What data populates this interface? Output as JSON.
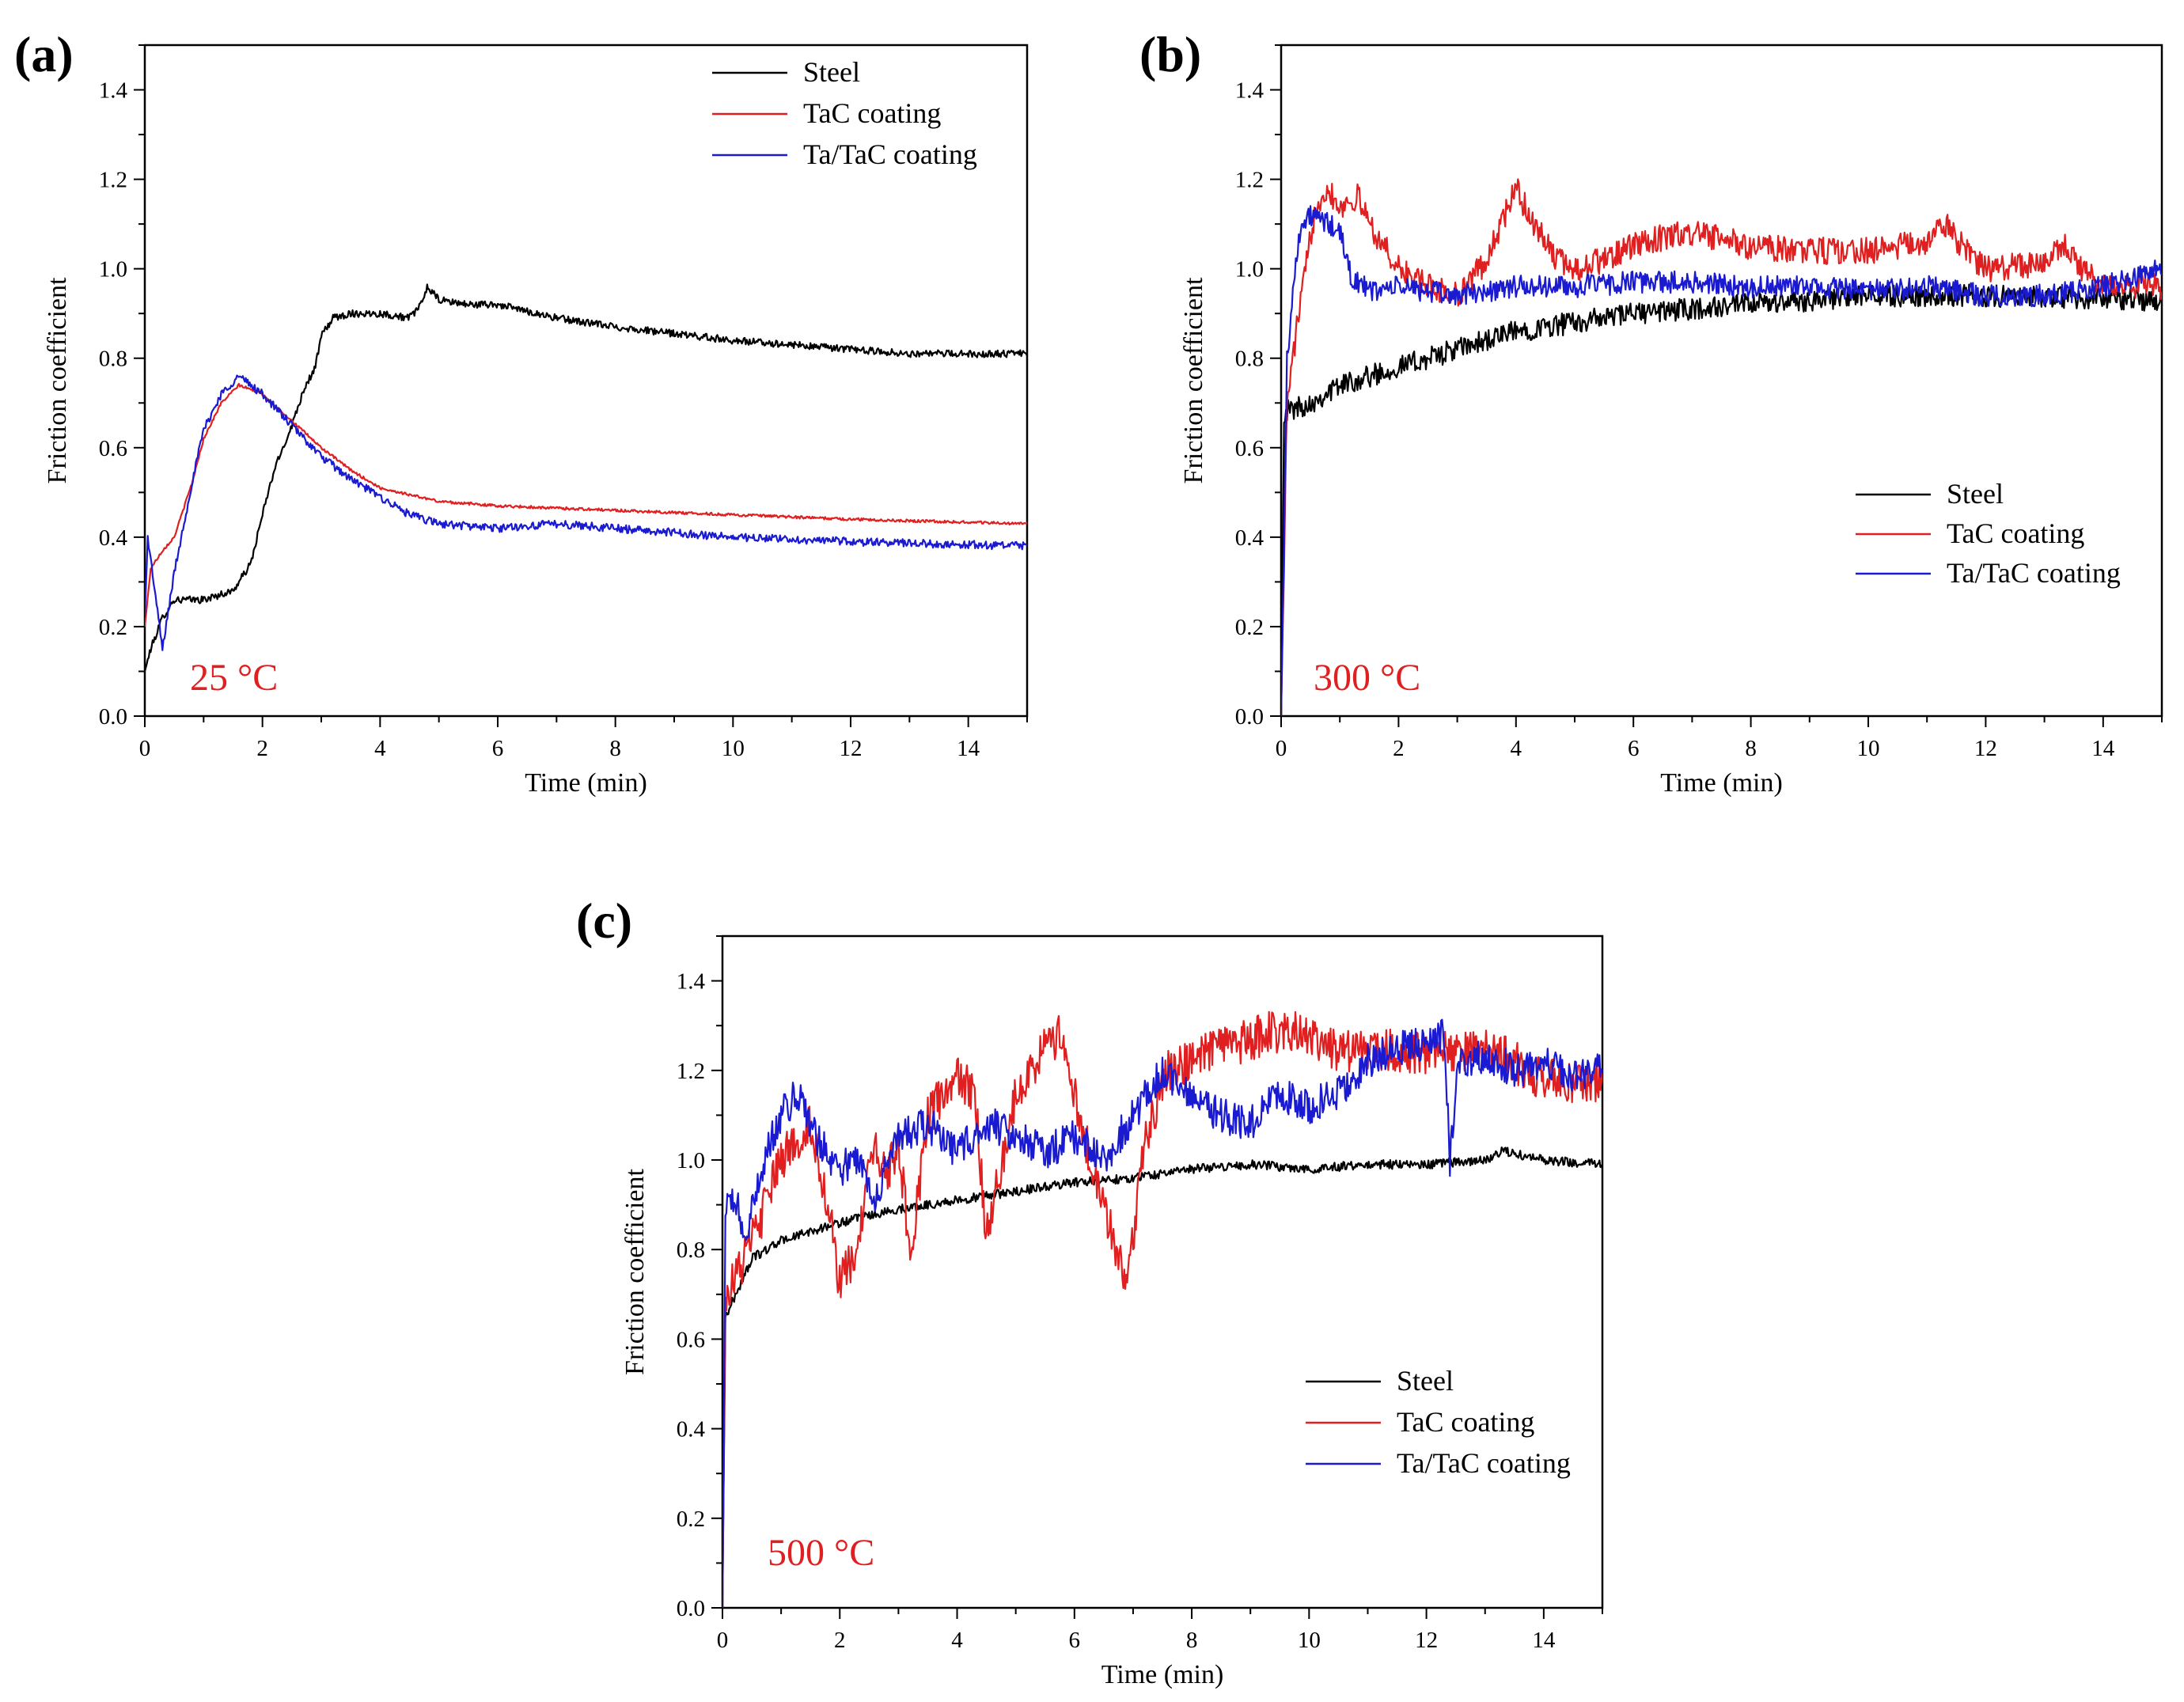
{
  "figure": {
    "panels": [
      "a",
      "b",
      "c"
    ]
  },
  "chart_data": [
    {
      "panel": "(a)",
      "type": "line",
      "annotation": "25 °C",
      "annotation_color": "#e02020",
      "xlabel": "Time (min)",
      "ylabel": "Friction coefficient",
      "xlim": [
        0,
        15
      ],
      "ylim": [
        0,
        1.5
      ],
      "xticks": [
        0,
        2,
        4,
        6,
        8,
        10,
        12,
        14
      ],
      "yticks": [
        0.0,
        0.2,
        0.4,
        0.6,
        0.8,
        1.0,
        1.2,
        1.4
      ],
      "legend_position": "top-right",
      "series": [
        {
          "name": "Steel",
          "color": "#000000",
          "noise": 0.008,
          "points": [
            [
              0,
              0.1
            ],
            [
              0.1,
              0.15
            ],
            [
              0.3,
              0.22
            ],
            [
              0.5,
              0.26
            ],
            [
              1.0,
              0.26
            ],
            [
              1.5,
              0.28
            ],
            [
              1.8,
              0.34
            ],
            [
              2.0,
              0.45
            ],
            [
              2.2,
              0.55
            ],
            [
              2.5,
              0.65
            ],
            [
              2.7,
              0.73
            ],
            [
              2.9,
              0.78
            ],
            [
              3.0,
              0.85
            ],
            [
              3.2,
              0.89
            ],
            [
              3.5,
              0.9
            ],
            [
              4.0,
              0.9
            ],
            [
              4.5,
              0.89
            ],
            [
              4.7,
              0.92
            ],
            [
              4.8,
              0.96
            ],
            [
              5.0,
              0.93
            ],
            [
              5.5,
              0.92
            ],
            [
              6.0,
              0.92
            ],
            [
              7.0,
              0.89
            ],
            [
              8.0,
              0.87
            ],
            [
              10.0,
              0.84
            ],
            [
              12.0,
              0.82
            ],
            [
              13.0,
              0.81
            ],
            [
              15.0,
              0.81
            ]
          ]
        },
        {
          "name": "TaC coating",
          "color": "#e02020",
          "noise": 0.003,
          "points": [
            [
              0,
              0.2
            ],
            [
              0.1,
              0.33
            ],
            [
              0.3,
              0.37
            ],
            [
              0.5,
              0.4
            ],
            [
              0.8,
              0.52
            ],
            [
              1.0,
              0.62
            ],
            [
              1.3,
              0.7
            ],
            [
              1.6,
              0.74
            ],
            [
              2.0,
              0.72
            ],
            [
              2.5,
              0.66
            ],
            [
              3.0,
              0.6
            ],
            [
              3.5,
              0.55
            ],
            [
              4.0,
              0.51
            ],
            [
              5.0,
              0.48
            ],
            [
              6.0,
              0.47
            ],
            [
              8.0,
              0.46
            ],
            [
              10.0,
              0.45
            ],
            [
              12.0,
              0.44
            ],
            [
              15.0,
              0.43
            ]
          ]
        },
        {
          "name": "Ta/TaC coating",
          "color": "#1a1ad0",
          "noise": 0.009,
          "points": [
            [
              0,
              0.22
            ],
            [
              0.05,
              0.4
            ],
            [
              0.15,
              0.3
            ],
            [
              0.3,
              0.15
            ],
            [
              0.5,
              0.32
            ],
            [
              0.8,
              0.52
            ],
            [
              1.0,
              0.64
            ],
            [
              1.3,
              0.72
            ],
            [
              1.6,
              0.76
            ],
            [
              2.0,
              0.72
            ],
            [
              2.5,
              0.65
            ],
            [
              3.0,
              0.58
            ],
            [
              3.5,
              0.53
            ],
            [
              4.0,
              0.49
            ],
            [
              4.5,
              0.45
            ],
            [
              5.0,
              0.43
            ],
            [
              6.0,
              0.42
            ],
            [
              7.0,
              0.43
            ],
            [
              8.0,
              0.42
            ],
            [
              10.0,
              0.4
            ],
            [
              12.0,
              0.39
            ],
            [
              15.0,
              0.38
            ]
          ]
        }
      ]
    },
    {
      "panel": "(b)",
      "type": "line",
      "annotation": "300 °C",
      "annotation_color": "#e02020",
      "xlabel": "Time (min)",
      "ylabel": "Friction coefficient",
      "xlim": [
        0,
        15
      ],
      "ylim": [
        0,
        1.5
      ],
      "xticks": [
        0,
        2,
        4,
        6,
        8,
        10,
        12,
        14
      ],
      "yticks": [
        0.0,
        0.2,
        0.4,
        0.6,
        0.8,
        1.0,
        1.2,
        1.4
      ],
      "legend_position": "bottom-right",
      "series": [
        {
          "name": "Steel",
          "color": "#000000",
          "noise": 0.025,
          "points": [
            [
              0,
              0.0
            ],
            [
              0.05,
              0.68
            ],
            [
              0.5,
              0.7
            ],
            [
              1.0,
              0.74
            ],
            [
              2.0,
              0.78
            ],
            [
              3.0,
              0.82
            ],
            [
              4.0,
              0.86
            ],
            [
              5.0,
              0.88
            ],
            [
              6.0,
              0.9
            ],
            [
              7.0,
              0.91
            ],
            [
              8.0,
              0.92
            ],
            [
              10.0,
              0.94
            ],
            [
              12.0,
              0.94
            ],
            [
              15.0,
              0.93
            ]
          ]
        },
        {
          "name": "TaC coating",
          "color": "#e02020",
          "noise": 0.03,
          "points": [
            [
              0,
              0.0
            ],
            [
              0.1,
              0.7
            ],
            [
              0.3,
              0.9
            ],
            [
              0.6,
              1.15
            ],
            [
              0.8,
              1.18
            ],
            [
              1.0,
              1.14
            ],
            [
              1.3,
              1.16
            ],
            [
              1.6,
              1.08
            ],
            [
              2.0,
              1.0
            ],
            [
              2.5,
              0.96
            ],
            [
              3.0,
              0.94
            ],
            [
              3.5,
              1.02
            ],
            [
              4.0,
              1.18
            ],
            [
              4.3,
              1.1
            ],
            [
              4.7,
              1.02
            ],
            [
              5.0,
              1.0
            ],
            [
              5.5,
              1.02
            ],
            [
              6.0,
              1.05
            ],
            [
              6.5,
              1.07
            ],
            [
              7.0,
              1.08
            ],
            [
              8.0,
              1.05
            ],
            [
              9.0,
              1.04
            ],
            [
              10.0,
              1.04
            ],
            [
              11.0,
              1.06
            ],
            [
              11.3,
              1.1
            ],
            [
              11.6,
              1.05
            ],
            [
              12.0,
              1.0
            ],
            [
              13.0,
              1.01
            ],
            [
              13.3,
              1.06
            ],
            [
              13.6,
              1.0
            ],
            [
              14.0,
              0.97
            ],
            [
              15.0,
              0.96
            ]
          ]
        },
        {
          "name": "Ta/TaC coating",
          "color": "#1a1ad0",
          "noise": 0.025,
          "points": [
            [
              0,
              0.0
            ],
            [
              0.1,
              0.8
            ],
            [
              0.3,
              1.08
            ],
            [
              0.5,
              1.12
            ],
            [
              0.8,
              1.1
            ],
            [
              1.0,
              1.08
            ],
            [
              1.2,
              0.98
            ],
            [
              1.5,
              0.95
            ],
            [
              2.0,
              0.96
            ],
            [
              3.0,
              0.94
            ],
            [
              4.0,
              0.96
            ],
            [
              5.0,
              0.96
            ],
            [
              6.0,
              0.97
            ],
            [
              7.0,
              0.97
            ],
            [
              8.0,
              0.96
            ],
            [
              9.0,
              0.96
            ],
            [
              10.0,
              0.95
            ],
            [
              11.0,
              0.96
            ],
            [
              12.0,
              0.94
            ],
            [
              13.0,
              0.94
            ],
            [
              14.0,
              0.96
            ],
            [
              14.5,
              0.98
            ],
            [
              15.0,
              1.01
            ]
          ]
        }
      ]
    },
    {
      "panel": "(c)",
      "type": "line",
      "annotation": "500 °C",
      "annotation_color": "#e02020",
      "xlabel": "Time (min)",
      "ylabel": "Friction coefficient",
      "xlim": [
        0,
        15
      ],
      "ylim": [
        0,
        1.5
      ],
      "xticks": [
        0,
        2,
        4,
        6,
        8,
        10,
        12,
        14
      ],
      "yticks": [
        0.0,
        0.2,
        0.4,
        0.6,
        0.8,
        1.0,
        1.2,
        1.4
      ],
      "legend_position": "bottom-right",
      "series": [
        {
          "name": "Steel",
          "color": "#000000",
          "noise": 0.01,
          "points": [
            [
              0,
              0.0
            ],
            [
              0.05,
              0.65
            ],
            [
              0.3,
              0.72
            ],
            [
              0.5,
              0.78
            ],
            [
              1.0,
              0.82
            ],
            [
              2.0,
              0.86
            ],
            [
              3.0,
              0.89
            ],
            [
              4.0,
              0.91
            ],
            [
              5.0,
              0.93
            ],
            [
              6.0,
              0.95
            ],
            [
              7.0,
              0.96
            ],
            [
              8.0,
              0.98
            ],
            [
              9.0,
              0.99
            ],
            [
              10.0,
              0.98
            ],
            [
              11.0,
              0.99
            ],
            [
              12.0,
              0.99
            ],
            [
              13.0,
              1.0
            ],
            [
              13.3,
              1.02
            ],
            [
              14.0,
              1.0
            ],
            [
              15.0,
              0.99
            ]
          ]
        },
        {
          "name": "TaC coating",
          "color": "#e02020",
          "noise": 0.05,
          "points": [
            [
              0,
              0.0
            ],
            [
              0.05,
              0.7
            ],
            [
              0.3,
              0.76
            ],
            [
              0.6,
              0.85
            ],
            [
              1.0,
              1.0
            ],
            [
              1.5,
              1.08
            ],
            [
              1.8,
              0.9
            ],
            [
              2.0,
              0.72
            ],
            [
              2.3,
              0.8
            ],
            [
              2.6,
              1.05
            ],
            [
              2.8,
              0.95
            ],
            [
              3.0,
              1.05
            ],
            [
              3.2,
              0.78
            ],
            [
              3.5,
              1.1
            ],
            [
              4.0,
              1.18
            ],
            [
              4.3,
              1.15
            ],
            [
              4.5,
              0.82
            ],
            [
              5.0,
              1.15
            ],
            [
              5.5,
              1.25
            ],
            [
              5.8,
              1.28
            ],
            [
              6.0,
              1.15
            ],
            [
              6.3,
              0.98
            ],
            [
              6.6,
              0.85
            ],
            [
              6.9,
              0.72
            ],
            [
              7.2,
              1.05
            ],
            [
              7.6,
              1.2
            ],
            [
              8.0,
              1.22
            ],
            [
              8.5,
              1.25
            ],
            [
              9.0,
              1.27
            ],
            [
              9.5,
              1.29
            ],
            [
              10.0,
              1.28
            ],
            [
              10.5,
              1.24
            ],
            [
              11.0,
              1.25
            ],
            [
              12.0,
              1.24
            ],
            [
              13.0,
              1.25
            ],
            [
              13.5,
              1.22
            ],
            [
              14.0,
              1.18
            ],
            [
              14.5,
              1.17
            ],
            [
              15.0,
              1.18
            ]
          ]
        },
        {
          "name": "Ta/TaC coating",
          "color": "#1a1ad0",
          "noise": 0.04,
          "points": [
            [
              0,
              0.0
            ],
            [
              0.05,
              0.88
            ],
            [
              0.2,
              0.92
            ],
            [
              0.4,
              0.82
            ],
            [
              0.7,
              1.0
            ],
            [
              1.0,
              1.1
            ],
            [
              1.3,
              1.15
            ],
            [
              1.6,
              1.05
            ],
            [
              2.0,
              0.98
            ],
            [
              2.3,
              1.0
            ],
            [
              2.6,
              0.92
            ],
            [
              3.0,
              1.05
            ],
            [
              3.5,
              1.08
            ],
            [
              4.0,
              1.02
            ],
            [
              4.5,
              1.08
            ],
            [
              5.0,
              1.06
            ],
            [
              5.5,
              1.02
            ],
            [
              6.0,
              1.05
            ],
            [
              6.5,
              1.0
            ],
            [
              7.0,
              1.1
            ],
            [
              7.5,
              1.2
            ],
            [
              8.0,
              1.14
            ],
            [
              8.5,
              1.1
            ],
            [
              9.0,
              1.08
            ],
            [
              9.5,
              1.15
            ],
            [
              10.0,
              1.12
            ],
            [
              10.5,
              1.15
            ],
            [
              11.0,
              1.22
            ],
            [
              11.5,
              1.25
            ],
            [
              12.0,
              1.26
            ],
            [
              12.3,
              1.28
            ],
            [
              12.4,
              1.0
            ],
            [
              12.55,
              1.22
            ],
            [
              13.0,
              1.23
            ],
            [
              13.5,
              1.2
            ],
            [
              14.0,
              1.22
            ],
            [
              14.5,
              1.18
            ],
            [
              15.0,
              1.2
            ]
          ]
        }
      ]
    }
  ]
}
